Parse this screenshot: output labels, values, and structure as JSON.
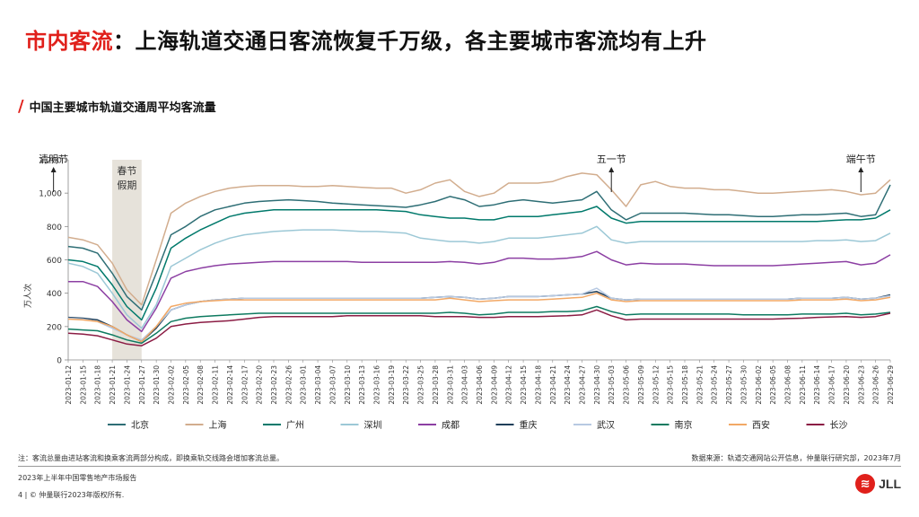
{
  "title": {
    "highlight": "市内客流",
    "rest": "：上海轨道交通日客流恢复千万级，各主要城市客流均有上升"
  },
  "subtitle": "中国主要城市轨道交通周平均客流量",
  "footer": {
    "note": "注：客流总量由进站客流和换乘客流两部分构成，即换乘轨交线路会增加客流总量。",
    "source": "数据来源：轨道交通网站公开信息，仲量联行研究部，2023年7月",
    "report": "2023年上半年中国零售地产市场报告",
    "copyright": "4 | © 仲量联行2023年版权所有.",
    "logo_text": "JLL"
  },
  "chart_data": {
    "type": "line",
    "ylabel": "万人次",
    "ylim": [
      0,
      1200
    ],
    "yticks": [
      "0",
      "200",
      "400",
      "600",
      "800",
      "1,000",
      "1,200"
    ],
    "x_labels": [
      "2023-01-12",
      "2023-01-15",
      "2023-01-18",
      "2023-01-21",
      "2023-01-24",
      "2023-01-27",
      "2023-01-30",
      "2023-02-02",
      "2023-02-05",
      "2023-02-08",
      "2023-02-11",
      "2023-02-14",
      "2023-02-17",
      "2023-02-20",
      "2023-02-23",
      "2023-02-26",
      "2023-03-01",
      "2023-03-04",
      "2023-03-07",
      "2023-03-10",
      "2023-03-13",
      "2023-03-16",
      "2023-03-19",
      "2023-03-22",
      "2023-03-25",
      "2023-03-28",
      "2023-03-31",
      "2023-04-03",
      "2023-04-06",
      "2023-04-09",
      "2023-04-12",
      "2023-04-15",
      "2023-04-18",
      "2023-04-21",
      "2023-04-24",
      "2023-04-27",
      "2023-04-30",
      "2023-05-03",
      "2023-05-06",
      "2023-05-09",
      "2023-05-12",
      "2023-05-15",
      "2023-05-18",
      "2023-05-21",
      "2023-05-24",
      "2023-05-27",
      "2023-05-30",
      "2023-06-02",
      "2023-06-05",
      "2023-06-08",
      "2023-06-11",
      "2023-06-14",
      "2023-06-17",
      "2023-06-20",
      "2023-06-23",
      "2023-06-26",
      "2023-06-29"
    ],
    "annotations": [
      {
        "label": "春节\n假期",
        "type": "band",
        "x_start": "2023-01-21",
        "x_end": "2023-01-27"
      },
      {
        "label": "清明节",
        "type": "arrow",
        "x": "2023-04-05"
      },
      {
        "label": "五一节",
        "type": "arrow",
        "x": "2023-05-03"
      },
      {
        "label": "端午节",
        "type": "arrow",
        "x": "2023-06-23"
      }
    ],
    "series": [
      {
        "name": "北京",
        "color": "#2e6e75",
        "dash": "",
        "values": [
          680,
          670,
          640,
          520,
          380,
          300,
          520,
          750,
          800,
          860,
          900,
          920,
          940,
          950,
          955,
          960,
          955,
          950,
          940,
          935,
          930,
          925,
          920,
          915,
          930,
          950,
          980,
          960,
          920,
          930,
          950,
          960,
          950,
          940,
          950,
          960,
          1010,
          900,
          840,
          880,
          880,
          880,
          880,
          875,
          870,
          870,
          865,
          860,
          860,
          865,
          870,
          870,
          875,
          880,
          860,
          870,
          1050
        ]
      },
      {
        "name": "上海",
        "color": "#d2ad8e",
        "dash": "",
        "values": [
          735,
          720,
          690,
          580,
          420,
          330,
          600,
          880,
          940,
          980,
          1010,
          1030,
          1040,
          1045,
          1045,
          1045,
          1040,
          1040,
          1045,
          1040,
          1035,
          1030,
          1030,
          1000,
          1020,
          1060,
          1080,
          1010,
          980,
          1000,
          1060,
          1060,
          1060,
          1070,
          1100,
          1120,
          1110,
          1020,
          920,
          1050,
          1070,
          1040,
          1030,
          1030,
          1020,
          1020,
          1010,
          1000,
          1000,
          1005,
          1010,
          1015,
          1020,
          1010,
          990,
          1000,
          1080
        ]
      },
      {
        "name": "广州",
        "color": "#00796b",
        "dash": "",
        "values": [
          600,
          590,
          560,
          450,
          320,
          240,
          430,
          670,
          730,
          780,
          820,
          860,
          880,
          890,
          900,
          900,
          900,
          900,
          900,
          900,
          900,
          900,
          895,
          890,
          870,
          860,
          850,
          850,
          840,
          840,
          860,
          860,
          860,
          870,
          880,
          890,
          920,
          850,
          820,
          830,
          830,
          830,
          830,
          830,
          830,
          830,
          830,
          830,
          830,
          830,
          830,
          830,
          835,
          840,
          840,
          850,
          900
        ]
      },
      {
        "name": "深圳",
        "color": "#9cc8d6",
        "dash": "",
        "values": [
          580,
          560,
          520,
          400,
          270,
          190,
          330,
          560,
          610,
          660,
          700,
          730,
          750,
          760,
          770,
          775,
          780,
          780,
          780,
          775,
          770,
          770,
          765,
          760,
          730,
          720,
          710,
          710,
          700,
          710,
          730,
          730,
          730,
          740,
          750,
          760,
          800,
          720,
          700,
          710,
          710,
          710,
          710,
          710,
          710,
          710,
          710,
          710,
          710,
          710,
          710,
          715,
          715,
          720,
          710,
          715,
          760
        ]
      },
      {
        "name": "成都",
        "color": "#8c3fa3",
        "dash": "",
        "values": [
          470,
          470,
          440,
          350,
          240,
          170,
          310,
          490,
          530,
          550,
          565,
          575,
          580,
          585,
          590,
          590,
          590,
          590,
          590,
          590,
          585,
          585,
          585,
          585,
          585,
          585,
          590,
          585,
          575,
          585,
          610,
          610,
          605,
          605,
          610,
          620,
          650,
          600,
          570,
          580,
          575,
          575,
          575,
          570,
          565,
          565,
          565,
          565,
          565,
          570,
          575,
          580,
          585,
          590,
          570,
          580,
          630
        ]
      },
      {
        "name": "重庆",
        "color": "#1f3f5a",
        "dash": "",
        "values": [
          255,
          250,
          240,
          200,
          150,
          110,
          190,
          300,
          330,
          350,
          360,
          365,
          370,
          370,
          370,
          370,
          370,
          370,
          370,
          370,
          370,
          370,
          370,
          370,
          370,
          375,
          380,
          375,
          365,
          370,
          380,
          380,
          380,
          385,
          390,
          395,
          410,
          370,
          360,
          365,
          365,
          365,
          365,
          365,
          365,
          365,
          365,
          365,
          365,
          365,
          370,
          370,
          370,
          375,
          365,
          370,
          390
        ]
      },
      {
        "name": "武汉",
        "color": "#b7c9e2",
        "dash": "",
        "values": [
          250,
          245,
          230,
          190,
          150,
          120,
          200,
          300,
          330,
          350,
          360,
          365,
          370,
          370,
          370,
          370,
          370,
          370,
          370,
          370,
          370,
          370,
          370,
          370,
          370,
          375,
          380,
          375,
          365,
          370,
          380,
          380,
          380,
          385,
          390,
          395,
          430,
          370,
          360,
          365,
          365,
          365,
          365,
          365,
          365,
          365,
          365,
          365,
          365,
          365,
          370,
          370,
          370,
          375,
          365,
          370,
          385
        ]
      },
      {
        "name": "南京",
        "color": "#0e7a60",
        "dash": "",
        "values": [
          185,
          180,
          175,
          150,
          120,
          100,
          160,
          230,
          250,
          260,
          265,
          270,
          275,
          280,
          280,
          280,
          280,
          280,
          280,
          280,
          280,
          280,
          280,
          280,
          280,
          280,
          285,
          280,
          270,
          275,
          285,
          285,
          285,
          290,
          290,
          295,
          320,
          290,
          270,
          275,
          275,
          275,
          275,
          275,
          275,
          275,
          270,
          270,
          270,
          270,
          275,
          275,
          275,
          280,
          270,
          275,
          285
        ]
      },
      {
        "name": "西安",
        "color": "#f2a865",
        "dash": "",
        "values": [
          245,
          240,
          230,
          200,
          150,
          110,
          200,
          320,
          340,
          350,
          355,
          360,
          360,
          360,
          360,
          360,
          360,
          360,
          360,
          360,
          360,
          360,
          360,
          360,
          360,
          360,
          370,
          360,
          350,
          355,
          360,
          360,
          360,
          365,
          370,
          375,
          400,
          360,
          350,
          355,
          355,
          355,
          355,
          355,
          355,
          355,
          355,
          355,
          355,
          355,
          360,
          360,
          360,
          365,
          355,
          360,
          375
        ]
      },
      {
        "name": "长沙",
        "color": "#8b1c44",
        "dash": "",
        "values": [
          160,
          155,
          145,
          120,
          95,
          85,
          130,
          200,
          215,
          225,
          230,
          235,
          245,
          255,
          260,
          260,
          260,
          260,
          260,
          265,
          265,
          265,
          265,
          265,
          265,
          260,
          260,
          260,
          255,
          255,
          260,
          260,
          260,
          262,
          265,
          270,
          300,
          265,
          240,
          245,
          245,
          245,
          245,
          245,
          245,
          245,
          245,
          245,
          245,
          248,
          250,
          255,
          258,
          260,
          255,
          260,
          280
        ]
      }
    ]
  }
}
